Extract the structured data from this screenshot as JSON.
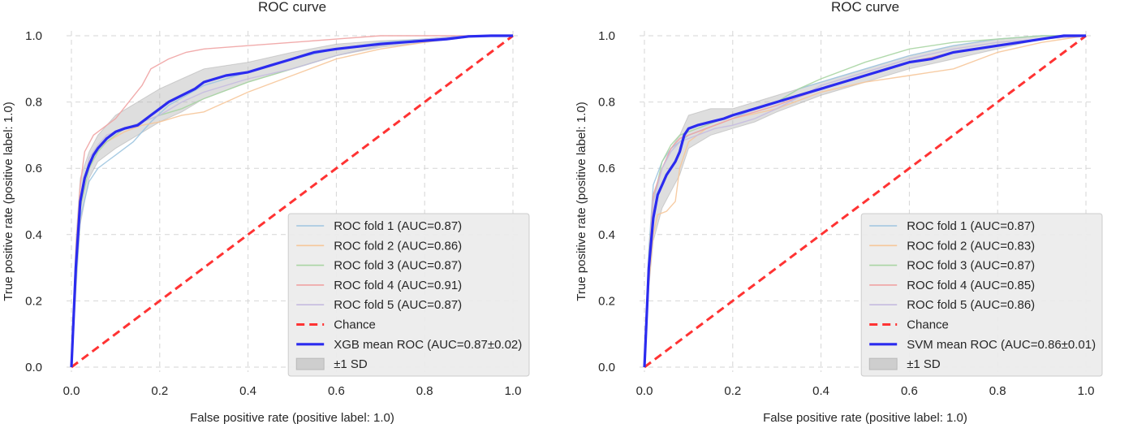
{
  "chart_data": [
    {
      "type": "line",
      "title": "ROC curve",
      "xlabel": "False positive rate (positive label: 1.0)",
      "ylabel": "True positive rate (positive label: 1.0)",
      "xlim": [
        0.0,
        1.0
      ],
      "ylim": [
        0.0,
        1.0
      ],
      "xticks": [
        "0.0",
        "0.2",
        "0.4",
        "0.6",
        "0.8",
        "1.0"
      ],
      "yticks": [
        "0.0",
        "0.2",
        "0.4",
        "0.6",
        "0.8",
        "1.0"
      ],
      "grid": true,
      "legend_position": "lower-right",
      "colors": {
        "fold1": "#9fc5e0",
        "fold2": "#f6c79a",
        "fold3": "#a9d5a3",
        "fold4": "#f0a3a3",
        "fold5": "#c5bbe0",
        "chance": "#ff3333",
        "mean": "#2b2bef",
        "band": "#b5b5b5"
      },
      "series": [
        {
          "name": "ROC fold 1 (AUC=0.87)",
          "x": [
            0.0,
            0.01,
            0.02,
            0.04,
            0.06,
            0.08,
            0.1,
            0.14,
            0.18,
            0.22,
            0.3,
            0.4,
            0.5,
            0.6,
            0.7,
            0.8,
            0.9,
            1.0
          ],
          "y": [
            0.0,
            0.25,
            0.45,
            0.56,
            0.6,
            0.62,
            0.64,
            0.68,
            0.74,
            0.79,
            0.85,
            0.89,
            0.93,
            0.96,
            0.98,
            0.99,
            1.0,
            1.0
          ]
        },
        {
          "name": "ROC fold 2 (AUC=0.86)",
          "x": [
            0.0,
            0.01,
            0.02,
            0.04,
            0.06,
            0.08,
            0.12,
            0.16,
            0.2,
            0.25,
            0.3,
            0.35,
            0.4,
            0.5,
            0.6,
            0.7,
            0.8,
            0.9,
            1.0
          ],
          "y": [
            0.0,
            0.28,
            0.5,
            0.62,
            0.66,
            0.68,
            0.71,
            0.73,
            0.74,
            0.76,
            0.77,
            0.8,
            0.83,
            0.88,
            0.93,
            0.96,
            0.98,
            1.0,
            1.0
          ]
        },
        {
          "name": "ROC fold 3 (AUC=0.87)",
          "x": [
            0.0,
            0.01,
            0.02,
            0.04,
            0.06,
            0.08,
            0.12,
            0.16,
            0.2,
            0.25,
            0.3,
            0.4,
            0.5,
            0.6,
            0.7,
            0.8,
            0.9,
            1.0
          ],
          "y": [
            0.0,
            0.3,
            0.48,
            0.6,
            0.65,
            0.68,
            0.72,
            0.74,
            0.76,
            0.78,
            0.81,
            0.86,
            0.9,
            0.94,
            0.97,
            0.99,
            1.0,
            1.0
          ]
        },
        {
          "name": "ROC fold 4 (AUC=0.91)",
          "x": [
            0.0,
            0.01,
            0.02,
            0.03,
            0.05,
            0.07,
            0.1,
            0.13,
            0.16,
            0.18,
            0.22,
            0.26,
            0.3,
            0.4,
            0.5,
            0.6,
            0.7,
            0.8,
            0.9,
            1.0
          ],
          "y": [
            0.0,
            0.35,
            0.55,
            0.65,
            0.7,
            0.72,
            0.75,
            0.8,
            0.85,
            0.9,
            0.93,
            0.95,
            0.96,
            0.97,
            0.98,
            0.99,
            1.0,
            1.0,
            1.0,
            1.0
          ]
        },
        {
          "name": "ROC fold 5 (AUC=0.87)",
          "x": [
            0.0,
            0.01,
            0.02,
            0.04,
            0.06,
            0.08,
            0.12,
            0.16,
            0.2,
            0.25,
            0.3,
            0.4,
            0.5,
            0.6,
            0.7,
            0.8,
            0.9,
            1.0
          ],
          "y": [
            0.0,
            0.27,
            0.5,
            0.63,
            0.67,
            0.7,
            0.72,
            0.74,
            0.76,
            0.8,
            0.83,
            0.87,
            0.9,
            0.94,
            0.97,
            0.99,
            1.0,
            1.0
          ]
        },
        {
          "name": "Chance",
          "x": [
            0.0,
            1.0
          ],
          "y": [
            0.0,
            1.0
          ]
        },
        {
          "name": "XGB mean ROC (AUC=0.87±0.02)",
          "x": [
            0.0,
            0.01,
            0.02,
            0.03,
            0.04,
            0.05,
            0.06,
            0.08,
            0.1,
            0.12,
            0.15,
            0.18,
            0.2,
            0.22,
            0.25,
            0.28,
            0.3,
            0.35,
            0.4,
            0.45,
            0.5,
            0.55,
            0.6,
            0.7,
            0.8,
            0.85,
            0.9,
            0.95,
            1.0
          ],
          "y": [
            0.0,
            0.3,
            0.5,
            0.57,
            0.61,
            0.64,
            0.66,
            0.69,
            0.71,
            0.72,
            0.73,
            0.76,
            0.78,
            0.8,
            0.82,
            0.84,
            0.86,
            0.88,
            0.89,
            0.91,
            0.93,
            0.95,
            0.96,
            0.975,
            0.985,
            0.99,
            0.998,
            1.0,
            1.0
          ]
        },
        {
          "name": "±1 SD",
          "x": [
            0.0,
            0.01,
            0.02,
            0.04,
            0.06,
            0.1,
            0.15,
            0.2,
            0.25,
            0.3,
            0.4,
            0.5,
            0.6,
            0.7,
            0.8,
            0.9,
            1.0
          ],
          "y_lower": [
            0.0,
            0.22,
            0.43,
            0.57,
            0.62,
            0.66,
            0.7,
            0.74,
            0.77,
            0.81,
            0.86,
            0.9,
            0.94,
            0.965,
            0.98,
            0.995,
            1.0
          ],
          "y_upper": [
            0.0,
            0.38,
            0.57,
            0.65,
            0.7,
            0.76,
            0.8,
            0.84,
            0.87,
            0.9,
            0.92,
            0.95,
            0.975,
            0.985,
            0.99,
            1.0,
            1.0
          ]
        }
      ]
    },
    {
      "type": "line",
      "title": "ROC curve",
      "xlabel": "False positive rate (positive label: 1.0)",
      "ylabel": "True positive rate (positive label: 1.0)",
      "xlim": [
        0.0,
        1.0
      ],
      "ylim": [
        0.0,
        1.0
      ],
      "xticks": [
        "0.0",
        "0.2",
        "0.4",
        "0.6",
        "0.8",
        "1.0"
      ],
      "yticks": [
        "0.0",
        "0.2",
        "0.4",
        "0.6",
        "0.8",
        "1.0"
      ],
      "grid": true,
      "legend_position": "lower-right",
      "colors": {
        "fold1": "#9fc5e0",
        "fold2": "#f6c79a",
        "fold3": "#a9d5a3",
        "fold4": "#f0a3a3",
        "fold5": "#c5bbe0",
        "chance": "#ff3333",
        "mean": "#2b2bef",
        "band": "#b5b5b5"
      },
      "series": [
        {
          "name": "ROC fold 1 (AUC=0.87)",
          "x": [
            0.0,
            0.01,
            0.02,
            0.04,
            0.06,
            0.08,
            0.1,
            0.14,
            0.2,
            0.25,
            0.3,
            0.35,
            0.4,
            0.5,
            0.6,
            0.7,
            0.8,
            0.9,
            1.0
          ],
          "y": [
            0.0,
            0.35,
            0.55,
            0.62,
            0.66,
            0.68,
            0.7,
            0.72,
            0.75,
            0.78,
            0.8,
            0.84,
            0.86,
            0.9,
            0.94,
            0.97,
            0.99,
            1.0,
            1.0
          ]
        },
        {
          "name": "ROC fold 2 (AUC=0.83)",
          "x": [
            0.0,
            0.01,
            0.02,
            0.03,
            0.05,
            0.07,
            0.08,
            0.1,
            0.14,
            0.2,
            0.3,
            0.4,
            0.5,
            0.6,
            0.7,
            0.8,
            0.9,
            1.0
          ],
          "y": [
            0.0,
            0.25,
            0.4,
            0.46,
            0.47,
            0.5,
            0.6,
            0.68,
            0.72,
            0.75,
            0.78,
            0.83,
            0.86,
            0.88,
            0.9,
            0.95,
            0.98,
            1.0
          ]
        },
        {
          "name": "ROC fold 3 (AUC=0.87)",
          "x": [
            0.0,
            0.01,
            0.02,
            0.04,
            0.06,
            0.08,
            0.12,
            0.16,
            0.2,
            0.25,
            0.3,
            0.35,
            0.4,
            0.5,
            0.6,
            0.7,
            0.8,
            0.9,
            1.0
          ],
          "y": [
            0.0,
            0.3,
            0.5,
            0.62,
            0.67,
            0.7,
            0.72,
            0.74,
            0.76,
            0.78,
            0.8,
            0.84,
            0.87,
            0.92,
            0.96,
            0.98,
            0.99,
            1.0,
            1.0
          ]
        },
        {
          "name": "ROC fold 4 (AUC=0.85)",
          "x": [
            0.0,
            0.01,
            0.02,
            0.04,
            0.06,
            0.08,
            0.12,
            0.16,
            0.2,
            0.25,
            0.3,
            0.4,
            0.5,
            0.6,
            0.7,
            0.8,
            0.9,
            1.0
          ],
          "y": [
            0.0,
            0.32,
            0.52,
            0.6,
            0.66,
            0.69,
            0.71,
            0.73,
            0.75,
            0.77,
            0.79,
            0.84,
            0.88,
            0.92,
            0.95,
            0.97,
            0.99,
            1.0
          ]
        },
        {
          "name": "ROC fold 5 (AUC=0.86)",
          "x": [
            0.0,
            0.01,
            0.02,
            0.04,
            0.06,
            0.08,
            0.12,
            0.16,
            0.2,
            0.25,
            0.3,
            0.4,
            0.5,
            0.6,
            0.7,
            0.8,
            0.9,
            1.0
          ],
          "y": [
            0.0,
            0.3,
            0.5,
            0.6,
            0.65,
            0.68,
            0.7,
            0.72,
            0.73,
            0.75,
            0.78,
            0.85,
            0.89,
            0.93,
            0.96,
            0.98,
            0.99,
            1.0
          ]
        },
        {
          "name": "Chance",
          "x": [
            0.0,
            1.0
          ],
          "y": [
            0.0,
            1.0
          ]
        },
        {
          "name": "SVM mean ROC (AUC=0.86±0.01)",
          "x": [
            0.0,
            0.01,
            0.02,
            0.03,
            0.04,
            0.05,
            0.06,
            0.07,
            0.08,
            0.09,
            0.1,
            0.12,
            0.15,
            0.18,
            0.2,
            0.25,
            0.3,
            0.35,
            0.4,
            0.45,
            0.5,
            0.55,
            0.6,
            0.65,
            0.7,
            0.8,
            0.85,
            0.9,
            0.95,
            1.0
          ],
          "y": [
            0.0,
            0.3,
            0.45,
            0.52,
            0.55,
            0.58,
            0.6,
            0.62,
            0.65,
            0.7,
            0.72,
            0.73,
            0.74,
            0.75,
            0.76,
            0.78,
            0.8,
            0.82,
            0.84,
            0.86,
            0.88,
            0.9,
            0.92,
            0.93,
            0.95,
            0.97,
            0.98,
            0.99,
            1.0,
            1.0
          ]
        },
        {
          "name": "±1 SD",
          "x": [
            0.0,
            0.01,
            0.02,
            0.04,
            0.06,
            0.08,
            0.1,
            0.15,
            0.2,
            0.25,
            0.3,
            0.4,
            0.5,
            0.6,
            0.7,
            0.8,
            0.9,
            1.0
          ],
          "y_lower": [
            0.0,
            0.24,
            0.38,
            0.48,
            0.53,
            0.58,
            0.66,
            0.7,
            0.72,
            0.74,
            0.77,
            0.82,
            0.86,
            0.9,
            0.93,
            0.96,
            0.99,
            1.0
          ],
          "y_upper": [
            0.0,
            0.36,
            0.52,
            0.6,
            0.66,
            0.7,
            0.76,
            0.78,
            0.78,
            0.8,
            0.82,
            0.86,
            0.9,
            0.94,
            0.97,
            0.99,
            1.0,
            1.0
          ]
        }
      ]
    }
  ]
}
